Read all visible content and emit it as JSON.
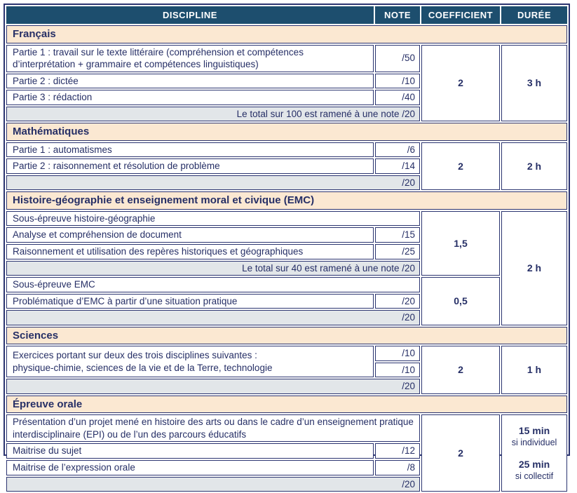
{
  "colors": {
    "header_bg": "#1d4e6e",
    "header_text": "#ffffff",
    "section_bg": "#fbe8d2",
    "total_bg": "#e2e6e9",
    "text_navy": "#262f66",
    "border_navy": "#2b3470"
  },
  "header": {
    "discipline": "DISCIPLINE",
    "note": "NOTE",
    "coefficient": "COEFFICIENT",
    "duree": "DURÉE"
  },
  "sections": [
    {
      "title": "Français",
      "coefficient": "2",
      "duree": "3 h",
      "rows": [
        {
          "label": "Partie 1 : travail sur le texte littéraire (compréhension et compétences d’interprétation + grammaire et compétences linguistiques)",
          "note": "/50"
        },
        {
          "label": "Partie 2 : dictée",
          "note": "/10"
        },
        {
          "label": "Partie 3 : rédaction",
          "note": "/40"
        }
      ],
      "total": "Le total sur 100 est ramené à une note /20"
    },
    {
      "title": "Mathématiques",
      "coefficient": "2",
      "duree": "2 h",
      "rows": [
        {
          "label": "Partie 1 : automatismes",
          "note": "/6"
        },
        {
          "label": "Partie 2 : raisonnement et résolution de problème",
          "note": "/14"
        }
      ],
      "total": "/20"
    },
    {
      "title": "Histoire-géographie et enseignement moral et civique (EMC)",
      "duree": "2 h",
      "subsections": [
        {
          "subtitle": "Sous-épreuve histoire-géographie",
          "coefficient": "1,5",
          "rows": [
            {
              "label": "Analyse et compréhension de document",
              "note": "/15"
            },
            {
              "label": "Raisonnement et utilisation des repères historiques et géographiques",
              "note": "/25"
            }
          ],
          "total": "Le total sur 40 est ramené à une note /20"
        },
        {
          "subtitle": "Sous-épreuve EMC",
          "coefficient": "0,5",
          "rows": [
            {
              "label": "Problématique d’EMC à partir d’une situation pratique",
              "note": "/20"
            }
          ],
          "total": "/20"
        }
      ]
    },
    {
      "title": "Sciences",
      "coefficient": "2",
      "duree": "1 h",
      "rows": [
        {
          "label": "Exercices portant sur deux des trois disciplines suivantes :\nphysique-chimie, sciences de la vie et de la Terre, technologie",
          "note1": "/10",
          "note2": "/10"
        }
      ],
      "total": "/20"
    },
    {
      "title": "Épreuve orale",
      "coefficient": "2",
      "intro": "Présentation d’un projet mené en histoire des arts ou dans le cadre d’un enseignement pratique interdisciplinaire (EPI) ou de l’un des parcours éducatifs",
      "rows": [
        {
          "label": "Maitrise du sujet",
          "note": "/12"
        },
        {
          "label": "Maitrise de l’expression orale",
          "note": "/8"
        }
      ],
      "total": "/20",
      "duree": {
        "d1": "15 min",
        "d1_sub": "si individuel",
        "d2": "25 min",
        "d2_sub": "si collectif"
      }
    }
  ]
}
